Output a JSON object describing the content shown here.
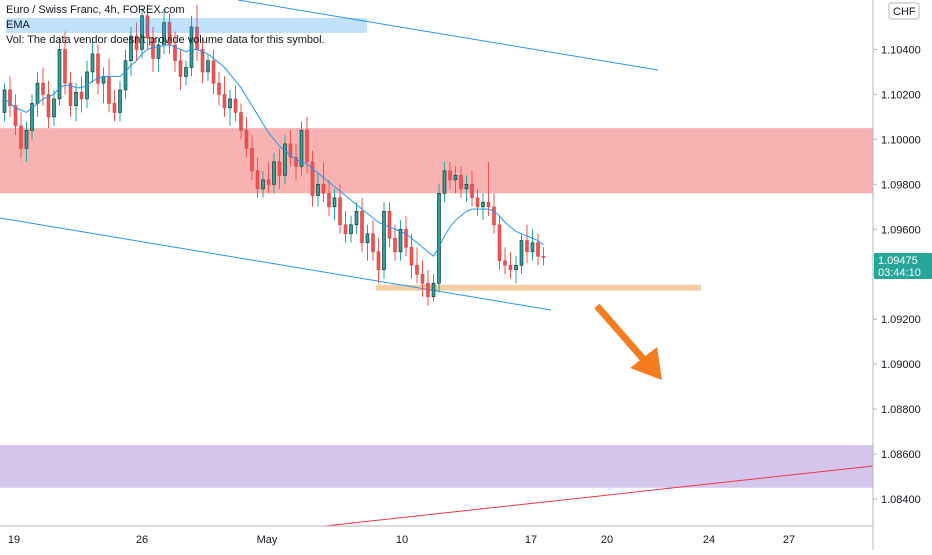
{
  "legend": {
    "title": "Euro / Swiss Franc, 4h, FOREX.com",
    "ema_label": "EMA",
    "vol_text": "Vol: The data vendor doesn't provide volume data for this symbol."
  },
  "currency_badge": "CHF",
  "price_label": {
    "price": "1.09475",
    "countdown": "03:44:10"
  },
  "colors": {
    "up": "#26a69a",
    "down": "#ef5350",
    "ema": "#2196f3",
    "resistance_zone": "#f8a5a5",
    "support_zone": "#d3c3ec",
    "trendline_red": "#f23645",
    "level_line": "#f5c99a",
    "arrow": "#f57c1f"
  },
  "chart_data": {
    "type": "candlestick",
    "title": "Euro / Swiss Franc, 4h, FOREX.com",
    "x_ticks": [
      "19",
      "26",
      "May",
      "10",
      "17",
      "20",
      "24",
      "27"
    ],
    "y_ticks": [
      "1.10400",
      "1.10200",
      "1.10000",
      "1.09800",
      "1.09600",
      "1.09400",
      "1.09200",
      "1.09000",
      "1.08800",
      "1.08600",
      "1.08400"
    ],
    "ylim": [
      1.0828,
      1.1062
    ],
    "zones": [
      {
        "name": "resistance",
        "from": 1.0976,
        "to": 1.1005
      },
      {
        "name": "support",
        "from": 1.0845,
        "to": 1.0864
      }
    ],
    "horizontal_level": 1.0934,
    "last_price": 1.09475,
    "candles": [
      [
        1.1012,
        1.1025,
        1.1008,
        1.1022
      ],
      [
        1.1022,
        1.1028,
        1.101,
        1.1015
      ],
      [
        1.1015,
        1.102,
        1.1002,
        1.1006
      ],
      [
        1.1006,
        1.1012,
        1.0992,
        1.0996
      ],
      [
        1.0996,
        1.1008,
        1.099,
        1.1004
      ],
      [
        1.1004,
        1.102,
        1.1,
        1.1016
      ],
      [
        1.1016,
        1.103,
        1.101,
        1.1025
      ],
      [
        1.1025,
        1.1032,
        1.1015,
        1.102
      ],
      [
        1.102,
        1.1026,
        1.1005,
        1.101
      ],
      [
        1.101,
        1.1022,
        1.1006,
        1.1018
      ],
      [
        1.1018,
        1.1045,
        1.1015,
        1.104
      ],
      [
        1.104,
        1.1048,
        1.102,
        1.1025
      ],
      [
        1.1025,
        1.103,
        1.101,
        1.1015
      ],
      [
        1.1015,
        1.1025,
        1.1008,
        1.1021
      ],
      [
        1.1021,
        1.1028,
        1.1012,
        1.1018
      ],
      [
        1.1018,
        1.1035,
        1.1014,
        1.103
      ],
      [
        1.103,
        1.1045,
        1.1025,
        1.1038
      ],
      [
        1.1038,
        1.1042,
        1.102,
        1.1025
      ],
      [
        1.1025,
        1.1032,
        1.1016,
        1.1028
      ],
      [
        1.1028,
        1.1036,
        1.1012,
        1.1016
      ],
      [
        1.1016,
        1.1022,
        1.1008,
        1.1012
      ],
      [
        1.1012,
        1.1026,
        1.1008,
        1.1022
      ],
      [
        1.1022,
        1.104,
        1.1018,
        1.1035
      ],
      [
        1.1035,
        1.105,
        1.1028,
        1.1046
      ],
      [
        1.1046,
        1.1052,
        1.1035,
        1.104
      ],
      [
        1.104,
        1.1058,
        1.1036,
        1.1055
      ],
      [
        1.1055,
        1.106,
        1.104,
        1.1045
      ],
      [
        1.1045,
        1.105,
        1.103,
        1.1036
      ],
      [
        1.1036,
        1.1045,
        1.103,
        1.1042
      ],
      [
        1.1042,
        1.1058,
        1.1038,
        1.1052
      ],
      [
        1.1052,
        1.1056,
        1.1038,
        1.1042
      ],
      [
        1.1042,
        1.1048,
        1.103,
        1.1035
      ],
      [
        1.1035,
        1.104,
        1.1022,
        1.1028
      ],
      [
        1.1028,
        1.1035,
        1.1024,
        1.1032
      ],
      [
        1.1032,
        1.1055,
        1.1028,
        1.105
      ],
      [
        1.105,
        1.106,
        1.1035,
        1.104
      ],
      [
        1.104,
        1.1045,
        1.1025,
        1.103
      ],
      [
        1.103,
        1.1038,
        1.1026,
        1.1035
      ],
      [
        1.1035,
        1.104,
        1.102,
        1.1025
      ],
      [
        1.1025,
        1.103,
        1.1015,
        1.102
      ],
      [
        1.102,
        1.1028,
        1.101,
        1.1014
      ],
      [
        1.1014,
        1.1022,
        1.1006,
        1.1018
      ],
      [
        1.1018,
        1.1024,
        1.1008,
        1.1012
      ],
      [
        1.1012,
        1.1016,
        1.1,
        1.1004
      ],
      [
        1.1004,
        1.101,
        1.0992,
        1.0996
      ],
      [
        1.0996,
        1.1002,
        1.0982,
        1.0986
      ],
      [
        1.0986,
        1.0992,
        1.0974,
        1.0978
      ],
      [
        1.0978,
        1.0986,
        1.0974,
        1.0982
      ],
      [
        1.0982,
        1.099,
        1.0976,
        1.098
      ],
      [
        1.098,
        1.0994,
        1.0976,
        1.099
      ],
      [
        1.099,
        1.0996,
        1.0978,
        1.0984
      ],
      [
        1.0984,
        1.1002,
        1.098,
        1.0998
      ],
      [
        1.0998,
        1.1004,
        1.0988,
        1.0992
      ],
      [
        1.0992,
        1.0998,
        1.0982,
        1.0988
      ],
      [
        1.0988,
        1.1008,
        1.0984,
        1.1004
      ],
      [
        1.1004,
        1.101,
        1.0985,
        1.099
      ],
      [
        1.099,
        1.0995,
        1.097,
        1.0975
      ],
      [
        1.0975,
        1.0985,
        1.097,
        1.098
      ],
      [
        1.098,
        1.099,
        1.0972,
        1.0976
      ],
      [
        1.0976,
        1.0982,
        1.0966,
        1.097
      ],
      [
        1.097,
        1.0978,
        1.0964,
        1.0974
      ],
      [
        1.0974,
        1.098,
        1.0958,
        1.0962
      ],
      [
        1.0962,
        1.0968,
        1.0954,
        1.0958
      ],
      [
        1.0958,
        1.0966,
        1.0954,
        1.0962
      ],
      [
        1.0962,
        1.0972,
        1.0958,
        1.0968
      ],
      [
        1.0968,
        1.0974,
        1.095,
        1.0954
      ],
      [
        1.0954,
        1.0962,
        1.0946,
        1.0958
      ],
      [
        1.0958,
        1.0964,
        1.0946,
        1.095
      ],
      [
        1.095,
        1.0956,
        1.0936,
        1.0942
      ],
      [
        1.0942,
        1.0972,
        1.0938,
        1.0968
      ],
      [
        1.0968,
        1.0972,
        1.0952,
        1.0956
      ],
      [
        1.0956,
        1.0962,
        1.0946,
        1.095
      ],
      [
        1.095,
        1.0964,
        1.0946,
        1.096
      ],
      [
        1.096,
        1.0966,
        1.0948,
        1.0952
      ],
      [
        1.0952,
        1.0958,
        1.0938,
        1.0944
      ],
      [
        1.0944,
        1.0952,
        1.0936,
        1.094
      ],
      [
        1.094,
        1.0946,
        1.093,
        1.0936
      ],
      [
        1.0936,
        1.0942,
        1.0926,
        1.093
      ],
      [
        1.093,
        1.094,
        1.0928,
        1.0936
      ],
      [
        1.0936,
        1.098,
        1.0932,
        1.0976
      ],
      [
        1.0976,
        1.099,
        1.0972,
        1.0986
      ],
      [
        1.0986,
        1.099,
        1.0978,
        1.0982
      ],
      [
        1.0982,
        1.0988,
        1.0976,
        1.0984
      ],
      [
        1.0984,
        1.0988,
        1.0974,
        1.0978
      ],
      [
        1.0978,
        1.0984,
        1.0972,
        1.098
      ],
      [
        1.098,
        1.0986,
        1.097,
        1.0974
      ],
      [
        1.0974,
        1.0978,
        1.0966,
        1.097
      ],
      [
        1.097,
        1.0976,
        1.0964,
        1.0972
      ],
      [
        1.0972,
        1.099,
        1.0966,
        1.097
      ],
      [
        1.097,
        1.0976,
        1.0958,
        1.0962
      ],
      [
        1.0962,
        1.0966,
        1.0942,
        1.0946
      ],
      [
        1.0946,
        1.0952,
        1.094,
        1.0944
      ],
      [
        1.0944,
        1.095,
        1.0938,
        1.0942
      ],
      [
        1.0942,
        1.0948,
        1.0936,
        1.0944
      ],
      [
        1.0944,
        1.0958,
        1.094,
        1.0955
      ],
      [
        1.0955,
        1.0962,
        1.0945,
        1.095
      ],
      [
        1.095,
        1.096,
        1.0946,
        1.0954
      ],
      [
        1.0954,
        1.0958,
        1.0944,
        1.0948
      ],
      [
        1.0948,
        1.0952,
        1.0944,
        1.09475
      ]
    ],
    "ema": [
      1.1018,
      1.1016,
      1.1014,
      1.1013,
      1.1012,
      1.1014,
      1.1016,
      1.1018,
      1.1019,
      1.102,
      1.1023,
      1.1024,
      1.1024,
      1.1023,
      1.1023,
      1.1024,
      1.1026,
      1.1027,
      1.1028,
      1.1028,
      1.1028,
      1.1028,
      1.103,
      1.1033,
      1.1035,
      1.1038,
      1.104,
      1.1041,
      1.1041,
      1.1042,
      1.1042,
      1.1041,
      1.104,
      1.1039,
      1.104,
      1.104,
      1.1039,
      1.1038,
      1.1036,
      1.1034,
      1.1032,
      1.1029,
      1.1026,
      1.1023,
      1.1019,
      1.1015,
      1.1011,
      1.1007,
      1.1003,
      1.1,
      1.0997,
      1.0995,
      1.0993,
      1.0991,
      1.099,
      1.0989,
      1.0987,
      1.0985,
      1.0983,
      1.0981,
      1.0979,
      1.0977,
      1.0975,
      1.0973,
      1.0971,
      1.0969,
      1.0967,
      1.0965,
      1.0963,
      1.0962,
      1.0961,
      1.096,
      1.0959,
      1.0958,
      1.0956,
      1.0954,
      1.0952,
      1.095,
      1.0948,
      1.0952,
      1.0957,
      1.0961,
      1.0964,
      1.0966,
      1.0968,
      1.0969,
      1.0969,
      1.0969,
      1.0969,
      1.0968,
      1.0966,
      1.0963,
      1.0961,
      1.0959,
      1.0958,
      1.0957,
      1.0956,
      1.0955,
      1.0953
    ]
  }
}
